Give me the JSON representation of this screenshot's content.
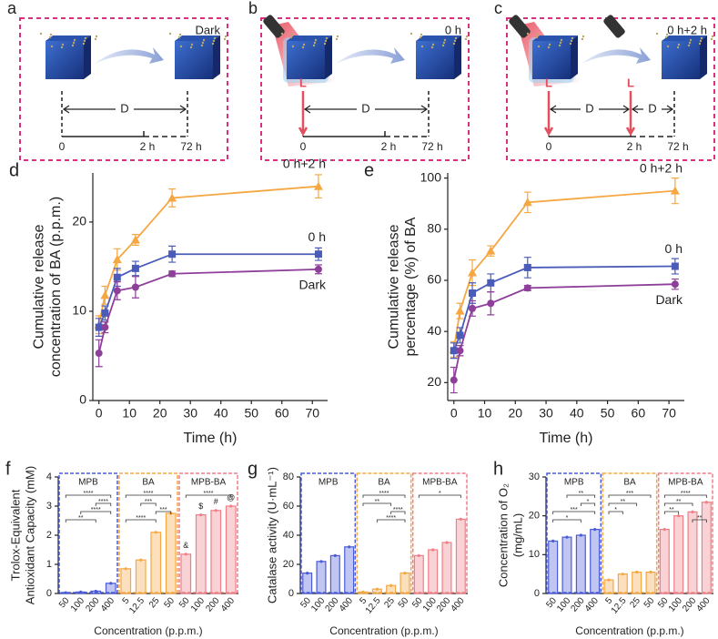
{
  "schematics": [
    {
      "letter": "a",
      "condition": "Dark",
      "ticks": [
        "0",
        "2 h",
        "72 h"
      ],
      "light_marks": [],
      "segments": [
        {
          "label": "D",
          "from": 0,
          "to": 2
        }
      ]
    },
    {
      "letter": "b",
      "condition": "0 h",
      "ticks": [
        "0",
        "2 h",
        "72 h"
      ],
      "light_marks": [
        {
          "label": "L",
          "at": 0
        }
      ],
      "segments": [
        {
          "label": "D",
          "from": 0,
          "to": 2
        }
      ]
    },
    {
      "letter": "c",
      "condition": "0 h+2 h",
      "ticks": [
        "0",
        "2 h",
        "72 h"
      ],
      "light_marks": [
        {
          "label": "L",
          "at": 0
        },
        {
          "label": "L",
          "at": 1
        }
      ],
      "segments": [
        {
          "label": "D",
          "from": 0,
          "to": 1
        },
        {
          "label": "D",
          "from": 1,
          "to": 2
        }
      ]
    }
  ],
  "chart_data": [
    {
      "type": "line",
      "panel": "d",
      "ylabel": [
        "Cumulative release",
        "concentration of BA  (p.p.m.)"
      ],
      "xlabel": "Time (h)",
      "x": [
        0,
        2,
        6,
        12,
        24,
        72
      ],
      "xlim": [
        -2,
        75
      ],
      "xticks": [
        0,
        10,
        20,
        30,
        40,
        50,
        60,
        70
      ],
      "ylim": [
        0,
        25.5
      ],
      "yticks": [
        0,
        10,
        20
      ],
      "series": [
        {
          "name": "0 h+2 h",
          "color": "#f5a742",
          "marker": "triangle",
          "values": [
            8.5,
            11.8,
            15.8,
            18,
            22.7,
            24
          ],
          "errors": [
            1,
            1,
            1.2,
            0.6,
            1,
            1.3
          ]
        },
        {
          "name": "0 h",
          "color": "#4a5bb8",
          "marker": "square",
          "values": [
            8.2,
            9.8,
            13.8,
            14.8,
            16.4,
            16.4
          ],
          "errors": [
            1,
            0.8,
            1,
            0.8,
            0.9,
            0.7
          ]
        },
        {
          "name": "Dark",
          "color": "#8e3f9a",
          "marker": "circle",
          "values": [
            5.3,
            8.2,
            12.3,
            12.7,
            14.2,
            14.7
          ],
          "errors": [
            1.5,
            0.6,
            1,
            1.2,
            0.3,
            0.5
          ]
        }
      ]
    },
    {
      "type": "line",
      "panel": "e",
      "ylabel": [
        "Cumulative release",
        "percentage (%) of BA"
      ],
      "xlabel": "Time (h)",
      "x": [
        0,
        2,
        6,
        12,
        24,
        72
      ],
      "xlim": [
        -2,
        75
      ],
      "xticks": [
        0,
        10,
        20,
        30,
        40,
        50,
        60,
        70
      ],
      "ylim": [
        13,
        102
      ],
      "yticks": [
        20,
        40,
        60,
        80,
        100
      ],
      "series": [
        {
          "name": "0 h+2 h",
          "color": "#f5a742",
          "marker": "triangle",
          "values": [
            33,
            48,
            63,
            71.5,
            90.5,
            95
          ],
          "errors": [
            3,
            3,
            5,
            2,
            4,
            5
          ]
        },
        {
          "name": "0 h",
          "color": "#4a5bb8",
          "marker": "square",
          "values": [
            32.5,
            38.5,
            55,
            59,
            65,
            65.5
          ],
          "errors": [
            3,
            3,
            4,
            3.5,
            4,
            3
          ]
        },
        {
          "name": "Dark",
          "color": "#8e3f9a",
          "marker": "circle",
          "values": [
            21,
            32.5,
            49,
            51,
            57,
            58.5
          ],
          "errors": [
            5,
            2,
            3,
            4.5,
            1,
            2
          ]
        }
      ]
    },
    {
      "type": "bar",
      "panel": "f",
      "ylabel": [
        "Trolox-Equivalent",
        "Antioxidant Capacity (mM)"
      ],
      "xlabel": "Concentration (p.p.m.)",
      "ylim": [
        0,
        4
      ],
      "yticks": [
        0,
        1,
        2,
        3,
        4
      ],
      "groups": [
        {
          "name": "MPB",
          "color": "#4a5bd6",
          "categories": [
            "50",
            "100",
            "200",
            "400"
          ],
          "values": [
            0.03,
            0.05,
            0.08,
            0.35
          ],
          "brackets": [
            {
              "from": 0,
              "to": 3,
              "label": "****"
            },
            {
              "from": 2,
              "to": 3,
              "label": "****"
            },
            {
              "from": 1,
              "to": 3,
              "label": "****"
            },
            {
              "from": 0,
              "to": 2,
              "label": "**"
            }
          ]
        },
        {
          "name": "BA",
          "color": "#f5a742",
          "categories": [
            "5",
            "12.5",
            "25",
            "50"
          ],
          "values": [
            0.85,
            1.15,
            2.1,
            2.75
          ],
          "brackets": [
            {
              "from": 0,
              "to": 3,
              "label": "****"
            },
            {
              "from": 1,
              "to": 2,
              "label": "***"
            },
            {
              "from": 2,
              "to": 3,
              "label": "***"
            },
            {
              "from": 0,
              "to": 2,
              "label": "****"
            }
          ]
        },
        {
          "name": "MPB-BA",
          "color": "#ef7f86",
          "categories": [
            "50",
            "100",
            "200",
            "400"
          ],
          "values": [
            1.35,
            2.7,
            2.85,
            3.0
          ],
          "notes": [
            "&",
            "$",
            "#",
            "@"
          ],
          "brackets": [
            {
              "from": 0,
              "to": 3,
              "label": "****"
            }
          ]
        }
      ]
    },
    {
      "type": "bar",
      "panel": "g",
      "ylabel": [
        "Catalase activity (U·mL⁻¹)"
      ],
      "xlabel": "Concentration (p.p.m.)",
      "ylim": [
        0,
        80
      ],
      "yticks": [
        0,
        20,
        40,
        60,
        80
      ],
      "groups": [
        {
          "name": "MPB",
          "color": "#4a5bd6",
          "categories": [
            "50",
            "100",
            "200",
            "400"
          ],
          "values": [
            14,
            22,
            26,
            32
          ],
          "brackets": []
        },
        {
          "name": "BA",
          "color": "#f5a742",
          "categories": [
            "5",
            "12.5",
            "25",
            "50"
          ],
          "values": [
            1,
            3,
            5.5,
            14
          ],
          "brackets": [
            {
              "from": 0,
              "to": 3,
              "label": "****"
            },
            {
              "from": 0,
              "to": 2,
              "label": "**"
            },
            {
              "from": 2,
              "to": 3,
              "label": "****"
            },
            {
              "from": 1,
              "to": 3,
              "label": "****"
            }
          ]
        },
        {
          "name": "MPB-BA",
          "color": "#ef7f86",
          "categories": [
            "50",
            "100",
            "200",
            "400"
          ],
          "values": [
            26,
            30,
            35,
            51
          ],
          "brackets": [
            {
              "from": 0,
              "to": 3,
              "label": "*"
            }
          ]
        }
      ]
    },
    {
      "type": "bar",
      "panel": "h",
      "ylabel": [
        "Concentration of O₂",
        "(mg/mL)"
      ],
      "xlabel": "Concentration (p.p.m.)",
      "ylim": [
        0,
        30
      ],
      "yticks": [
        0,
        10,
        20,
        30
      ],
      "groups": [
        {
          "name": "MPB",
          "color": "#4a5bd6",
          "categories": [
            "50",
            "100",
            "200",
            "400"
          ],
          "values": [
            13.5,
            14.5,
            15,
            16.5
          ],
          "brackets": [
            {
              "from": 1,
              "to": 3,
              "label": "**"
            },
            {
              "from": 2,
              "to": 3,
              "label": "*"
            },
            {
              "from": 0,
              "to": 3,
              "label": "***"
            },
            {
              "from": 0,
              "to": 2,
              "label": "*"
            }
          ]
        },
        {
          "name": "BA",
          "color": "#f5a742",
          "categories": [
            "5",
            "12.5",
            "25",
            "50"
          ],
          "values": [
            3.5,
            5,
            5.5,
            5.5
          ],
          "brackets": [
            {
              "from": 0,
              "to": 3,
              "label": "***"
            },
            {
              "from": 0,
              "to": 2,
              "label": "**"
            },
            {
              "from": 0,
              "to": 1,
              "label": "*"
            }
          ]
        },
        {
          "name": "MPB-BA",
          "color": "#ef7f86",
          "categories": [
            "50",
            "100",
            "200",
            "400"
          ],
          "values": [
            16.5,
            20,
            21,
            23.5
          ],
          "brackets": [
            {
              "from": 0,
              "to": 3,
              "label": "****"
            },
            {
              "from": 0,
              "to": 2,
              "label": "**"
            },
            {
              "from": 0,
              "to": 1,
              "label": "**"
            },
            {
              "from": 2,
              "to": 3,
              "label": "**"
            }
          ]
        }
      ]
    }
  ]
}
